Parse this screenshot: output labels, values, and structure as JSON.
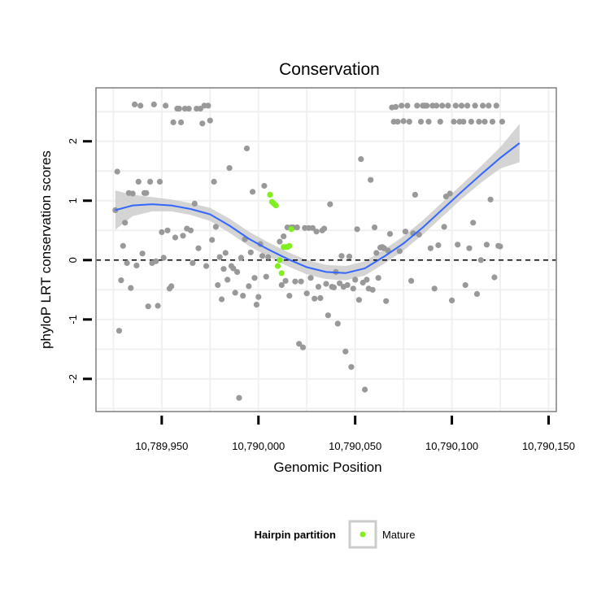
{
  "colors": {
    "panel_border": "#7f7f7f",
    "grid": "#f0f0f0",
    "point_other": "#999999",
    "point_mature": "#80ee20",
    "smooth_line": "#3366ff",
    "ribbon": "#cccccc",
    "zero_line": "#000000"
  },
  "chart_data": {
    "type": "scatter",
    "title": "Conservation",
    "xlabel": "Genomic Position",
    "ylabel": "phyloP LRT conservation scores",
    "xlim": [
      10789916,
      10790154
    ],
    "ylim": [
      -2.55,
      2.9
    ],
    "x_ticks": [
      10789950,
      10790000,
      10790050,
      10790100,
      10790150
    ],
    "x_tick_labels": [
      "10,789,950",
      "10,790,000",
      "10,790,050",
      "10,790,100",
      "10,790,150"
    ],
    "y_ticks": [
      -2,
      -1,
      0,
      1,
      2
    ],
    "y_tick_labels": [
      "-2",
      "-1",
      "0",
      "1",
      "2"
    ],
    "reference_line": {
      "y": 0,
      "style": "dashed"
    },
    "legend": {
      "title": "Hairpin partition",
      "entries": [
        {
          "label": "Mature",
          "color": "#80ee20"
        }
      ],
      "position": "bottom"
    },
    "series": [
      {
        "name": "Other",
        "points": [
          [
            10789926,
            0.84
          ],
          [
            10789927,
            1.49
          ],
          [
            10789928,
            -1.19
          ],
          [
            10789929,
            -0.34
          ],
          [
            10789930,
            0.24
          ],
          [
            10789931,
            0.63
          ],
          [
            10789932,
            -0.05
          ],
          [
            10789933,
            1.13
          ],
          [
            10789934,
            -0.47
          ],
          [
            10789935,
            1.12
          ],
          [
            10789936,
            2.62
          ],
          [
            10789937,
            -0.09
          ],
          [
            10789938,
            1.32
          ],
          [
            10789939,
            2.6
          ],
          [
            10789940,
            0.11
          ],
          [
            10789941,
            1.13
          ],
          [
            10789942,
            1.13
          ],
          [
            10789943,
            -0.78
          ],
          [
            10789944,
            1.32
          ],
          [
            10789945,
            -0.05
          ],
          [
            10789946,
            2.62
          ],
          [
            10789947,
            -0.02
          ],
          [
            10789948,
            -0.77
          ],
          [
            10789949,
            1.32
          ],
          [
            10789950,
            0.47
          ],
          [
            10789951,
            0.04
          ],
          [
            10789952,
            2.6
          ],
          [
            10789953,
            0.5
          ],
          [
            10789954,
            -0.48
          ],
          [
            10789955,
            -0.44
          ],
          [
            10789956,
            2.32
          ],
          [
            10789957,
            0.38
          ],
          [
            10789958,
            2.55
          ],
          [
            10789959,
            2.55
          ],
          [
            10789960,
            2.32
          ],
          [
            10789961,
            0.41
          ],
          [
            10789962,
            2.55
          ],
          [
            10789963,
            0.53
          ],
          [
            10789964,
            2.55
          ],
          [
            10789965,
            0.5
          ],
          [
            10789966,
            -0.05
          ],
          [
            10789967,
            0.95
          ],
          [
            10789968,
            2.55
          ],
          [
            10789969,
            0.2
          ],
          [
            10789970,
            2.55
          ],
          [
            10789971,
            2.3
          ],
          [
            10789972,
            2.6
          ],
          [
            10789973,
            -0.1
          ],
          [
            10789974,
            2.6
          ],
          [
            10789975,
            2.35
          ],
          [
            10789976,
            0.34
          ],
          [
            10789977,
            1.32
          ],
          [
            10789978,
            0.56
          ],
          [
            10789979,
            -0.42
          ],
          [
            10789980,
            0.05
          ],
          [
            10789981,
            -0.66
          ],
          [
            10789982,
            -0.15
          ],
          [
            10789983,
            0.12
          ],
          [
            10789984,
            -0.33
          ],
          [
            10789985,
            1.55
          ],
          [
            10789986,
            -0.1
          ],
          [
            10789987,
            -0.14
          ],
          [
            10789988,
            -0.55
          ],
          [
            10789989,
            -0.2
          ],
          [
            10789990,
            -2.32
          ],
          [
            10789991,
            0.04
          ],
          [
            10789992,
            -0.6
          ],
          [
            10789993,
            0.35
          ],
          [
            10789994,
            1.88
          ],
          [
            10789995,
            -0.44
          ],
          [
            10789996,
            0.13
          ],
          [
            10789997,
            1.15
          ],
          [
            10789998,
            -0.3
          ],
          [
            10789999,
            -0.75
          ],
          [
            10790000,
            -0.62
          ],
          [
            10790001,
            0.27
          ],
          [
            10790002,
            0.07
          ],
          [
            10790003,
            1.25
          ],
          [
            10790004,
            -0.28
          ],
          [
            10790005,
            0.05
          ],
          [
            10790011,
            0.31
          ],
          [
            10790012,
            -0.42
          ],
          [
            10790013,
            0.4
          ],
          [
            10790014,
            -0.35
          ],
          [
            10790015,
            0.55
          ],
          [
            10790016,
            -0.6
          ],
          [
            10790017,
            0.55
          ],
          [
            10790018,
            0.55
          ],
          [
            10790019,
            -0.36
          ],
          [
            10790020,
            0.55
          ],
          [
            10790021,
            -1.41
          ],
          [
            10790022,
            -0.36
          ],
          [
            10790023,
            -1.47
          ],
          [
            10790024,
            0.54
          ],
          [
            10790025,
            -0.56
          ],
          [
            10790026,
            0.54
          ],
          [
            10790027,
            -0.3
          ],
          [
            10790028,
            0.54
          ],
          [
            10790029,
            -0.65
          ],
          [
            10790030,
            0.48
          ],
          [
            10790031,
            -0.45
          ],
          [
            10790032,
            -0.64
          ],
          [
            10790033,
            0.5
          ],
          [
            10790034,
            0.53
          ],
          [
            10790035,
            -0.4
          ],
          [
            10790036,
            -0.93
          ],
          [
            10790037,
            0.94
          ],
          [
            10790038,
            -0.45
          ],
          [
            10790039,
            -0.46
          ],
          [
            10790040,
            -0.2
          ],
          [
            10790041,
            -1.07
          ],
          [
            10790042,
            -0.39
          ],
          [
            10790043,
            0.07
          ],
          [
            10790044,
            -0.45
          ],
          [
            10790045,
            -1.54
          ],
          [
            10790046,
            -0.42
          ],
          [
            10790047,
            0.06
          ],
          [
            10790048,
            -1.8
          ],
          [
            10790049,
            -0.48
          ],
          [
            10790050,
            -0.33
          ],
          [
            10790051,
            0.52
          ],
          [
            10790052,
            -0.67
          ],
          [
            10790053,
            1.7
          ],
          [
            10790054,
            -0.38
          ],
          [
            10790055,
            -2.18
          ],
          [
            10790056,
            -0.33
          ],
          [
            10790057,
            -0.48
          ],
          [
            10790058,
            1.35
          ],
          [
            10790059,
            -0.5
          ],
          [
            10790060,
            0.55
          ],
          [
            10790061,
            0.12
          ],
          [
            10790062,
            -0.3
          ],
          [
            10790063,
            0.21
          ],
          [
            10790064,
            0.22
          ],
          [
            10790065,
            0.2
          ],
          [
            10790066,
            -0.69
          ],
          [
            10790067,
            0.16
          ],
          [
            10790068,
            0.44
          ],
          [
            10790069,
            2.57
          ],
          [
            10790070,
            2.33
          ],
          [
            10790071,
            2.58
          ],
          [
            10790072,
            2.33
          ],
          [
            10790073,
            0.15
          ],
          [
            10790074,
            2.6
          ],
          [
            10790075,
            2.34
          ],
          [
            10790076,
            0.48
          ],
          [
            10790077,
            2.6
          ],
          [
            10790078,
            2.33
          ],
          [
            10790079,
            -0.35
          ],
          [
            10790080,
            0.45
          ],
          [
            10790081,
            1.1
          ],
          [
            10790082,
            2.6
          ],
          [
            10790083,
            0.43
          ],
          [
            10790084,
            2.33
          ],
          [
            10790085,
            2.6
          ],
          [
            10790086,
            2.6
          ],
          [
            10790087,
            2.6
          ],
          [
            10790088,
            2.33
          ],
          [
            10790089,
            0.2
          ],
          [
            10790090,
            2.6
          ],
          [
            10790091,
            -0.48
          ],
          [
            10790092,
            2.6
          ],
          [
            10790093,
            0.25
          ],
          [
            10790094,
            2.33
          ],
          [
            10790095,
            2.6
          ],
          [
            10790096,
            0.56
          ],
          [
            10790097,
            1.07
          ],
          [
            10790098,
            2.6
          ],
          [
            10790099,
            1.12
          ],
          [
            10790100,
            -0.68
          ],
          [
            10790101,
            2.33
          ],
          [
            10790102,
            2.6
          ],
          [
            10790103,
            0.26
          ],
          [
            10790104,
            2.33
          ],
          [
            10790105,
            2.6
          ],
          [
            10790106,
            2.33
          ],
          [
            10790107,
            -0.42
          ],
          [
            10790108,
            2.6
          ],
          [
            10790109,
            0.2
          ],
          [
            10790110,
            2.33
          ],
          [
            10790111,
            0.63
          ],
          [
            10790112,
            2.6
          ],
          [
            10790113,
            -0.57
          ],
          [
            10790114,
            2.33
          ],
          [
            10790115,
            0.0
          ],
          [
            10790116,
            2.6
          ],
          [
            10790117,
            2.33
          ],
          [
            10790118,
            0.26
          ],
          [
            10790119,
            2.6
          ],
          [
            10790120,
            1.02
          ],
          [
            10790121,
            2.33
          ],
          [
            10790122,
            -0.29
          ],
          [
            10790123,
            2.6
          ],
          [
            10790124,
            0.24
          ],
          [
            10790125,
            0.23
          ],
          [
            10790126,
            2.33
          ]
        ]
      },
      {
        "name": "Mature",
        "points": [
          [
            10790006,
            1.1
          ],
          [
            10790007,
            0.98
          ],
          [
            10790008,
            0.95
          ],
          [
            10790009,
            0.92
          ],
          [
            10790010,
            -0.1
          ],
          [
            10790011,
            0.0
          ],
          [
            10790012,
            -0.22
          ],
          [
            10790013,
            0.22
          ],
          [
            10790014,
            0.22
          ],
          [
            10790015,
            0.22
          ],
          [
            10790016,
            0.24
          ],
          [
            10790017,
            0.52
          ]
        ]
      },
      {
        "name": "loess",
        "type": "line",
        "points": [
          [
            10789926,
            0.84
          ],
          [
            10789935,
            0.92
          ],
          [
            10789945,
            0.94
          ],
          [
            10789955,
            0.92
          ],
          [
            10789965,
            0.86
          ],
          [
            10789975,
            0.77
          ],
          [
            10789985,
            0.58
          ],
          [
            10789995,
            0.36
          ],
          [
            10790005,
            0.18
          ],
          [
            10790015,
            0.02
          ],
          [
            10790025,
            -0.12
          ],
          [
            10790035,
            -0.2
          ],
          [
            10790045,
            -0.22
          ],
          [
            10790055,
            -0.14
          ],
          [
            10790065,
            0.06
          ],
          [
            10790075,
            0.28
          ],
          [
            10790085,
            0.55
          ],
          [
            10790095,
            0.85
          ],
          [
            10790105,
            1.15
          ],
          [
            10790115,
            1.44
          ],
          [
            10790125,
            1.72
          ],
          [
            10790135,
            1.97
          ]
        ],
        "ribbon_halfwidth": [
          0.33,
          0.18,
          0.12,
          0.1,
          0.1,
          0.11,
          0.12,
          0.12,
          0.12,
          0.12,
          0.12,
          0.12,
          0.12,
          0.12,
          0.12,
          0.12,
          0.12,
          0.12,
          0.12,
          0.14,
          0.18,
          0.32
        ]
      }
    ]
  }
}
